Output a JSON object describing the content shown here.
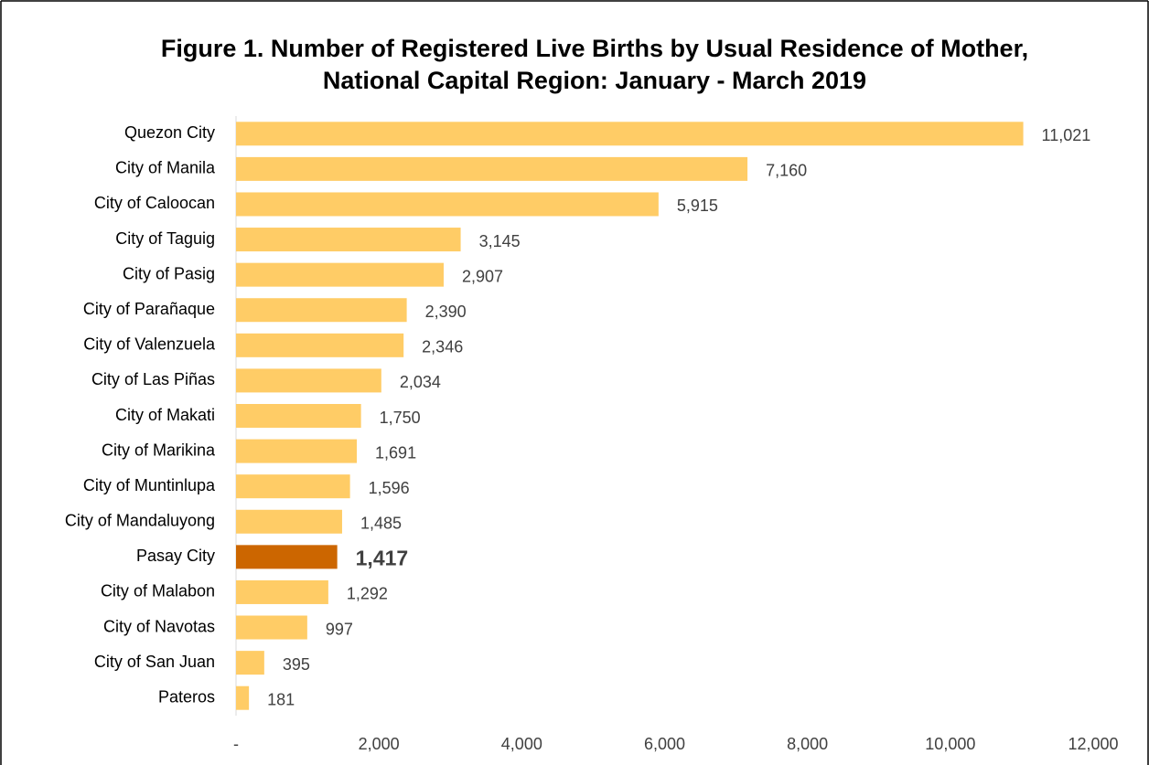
{
  "chart_data": {
    "type": "bar",
    "orientation": "horizontal",
    "title": "Figure 1. Number of Registered Live Births by Usual Residence of Mother, National Capital Region: January - March 2019",
    "categories": [
      "Quezon City",
      "City of Manila",
      "City of Caloocan",
      "City of Taguig",
      "City of Pasig",
      "City of Parañaque",
      "City of Valenzuela",
      "City of Las Piñas",
      "City of Makati",
      "City of Marikina",
      "City of Muntinlupa",
      "City of Mandaluyong",
      "Pasay City",
      "City of Malabon",
      "City of Navotas",
      "City of San Juan",
      "Pateros"
    ],
    "values": [
      11021,
      7160,
      5915,
      3145,
      2907,
      2390,
      2346,
      2034,
      1750,
      1691,
      1596,
      1485,
      1417,
      1292,
      997,
      395,
      181
    ],
    "value_labels": [
      "11,021",
      "7,160",
      "5,915",
      "3,145",
      "2,907",
      "2,390",
      "2,346",
      "2,034",
      "1,750",
      "1,691",
      "1,596",
      "1,485",
      "1,417",
      "1,292",
      "997",
      "395",
      "181"
    ],
    "color": "#FFCC66",
    "colors": [
      "#FFCC66",
      "#FFCC66",
      "#FFCC66",
      "#FFCC66",
      "#FFCC66",
      "#FFCC66",
      "#FFCC66",
      "#FFCC66",
      "#FFCC66",
      "#FFCC66",
      "#FFCC66",
      "#FFCC66",
      "#CC6600",
      "#FFCC66",
      "#FFCC66",
      "#FFCC66",
      "#FFCC66"
    ],
    "xlim": [
      0,
      12000
    ],
    "xticks": [
      {
        "value": 0,
        "label": "-"
      },
      {
        "value": 2000,
        "label": "2,000"
      },
      {
        "value": 4000,
        "label": "4,000"
      },
      {
        "value": 6000,
        "label": "6,000"
      },
      {
        "value": 8000,
        "label": "8,000"
      },
      {
        "value": 10000,
        "label": "10,000"
      },
      {
        "value": 12000,
        "label": "12,000"
      }
    ],
    "grid": false
  }
}
